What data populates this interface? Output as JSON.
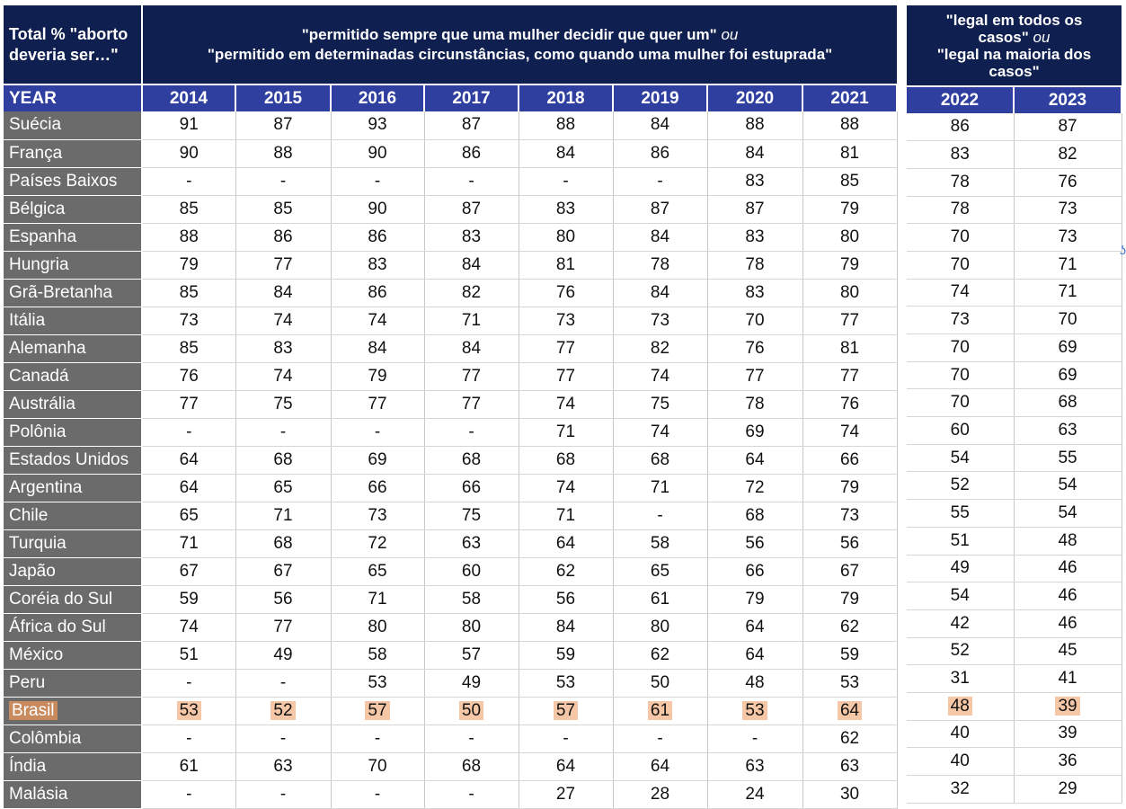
{
  "corner_label_line1": "Total % \"aborto",
  "corner_label_line2": "deveria ser…\"",
  "super_left_part1": "\"permitido sempre que uma mulher decidir que quer um\"",
  "super_left_or": "ou",
  "super_left_line2": "\"permitido em determinadas circunstâncias, como quando uma mulher foi estuprada\"",
  "super_right_line1": "\"legal em todos os",
  "super_right_part2": "casos\"",
  "super_right_or": "ou",
  "super_right_line3": "\"legal na maioria dos",
  "super_right_line4": "casos\"",
  "year_label": "YEAR",
  "highlight_color": "#f6c7a6",
  "chart_data": {
    "type": "table",
    "years_left": [
      "2014",
      "2015",
      "2016",
      "2017",
      "2018",
      "2019",
      "2020",
      "2021"
    ],
    "years_right": [
      "2022",
      "2023"
    ],
    "highlighted_country": "Brasil",
    "rows": [
      {
        "country": "Suécia",
        "left": [
          "91",
          "87",
          "93",
          "87",
          "88",
          "84",
          "88",
          "88"
        ],
        "right": [
          "86",
          "87"
        ]
      },
      {
        "country": "França",
        "left": [
          "90",
          "88",
          "90",
          "86",
          "84",
          "86",
          "84",
          "81"
        ],
        "right": [
          "83",
          "82"
        ]
      },
      {
        "country": "Países Baixos",
        "left": [
          "-",
          "-",
          "-",
          "-",
          "-",
          "-",
          "83",
          "85"
        ],
        "right": [
          "78",
          "76"
        ]
      },
      {
        "country": "Bélgica",
        "left": [
          "85",
          "85",
          "90",
          "87",
          "83",
          "87",
          "87",
          "79"
        ],
        "right": [
          "78",
          "73"
        ]
      },
      {
        "country": "Espanha",
        "left": [
          "88",
          "86",
          "86",
          "83",
          "80",
          "84",
          "83",
          "80"
        ],
        "right": [
          "70",
          "73"
        ]
      },
      {
        "country": "Hungria",
        "left": [
          "79",
          "77",
          "83",
          "84",
          "81",
          "78",
          "78",
          "79"
        ],
        "right": [
          "70",
          "71"
        ]
      },
      {
        "country": "Grã-Bretanha",
        "left": [
          "85",
          "84",
          "86",
          "82",
          "76",
          "84",
          "83",
          "80"
        ],
        "right": [
          "74",
          "71"
        ]
      },
      {
        "country": "Itália",
        "left": [
          "73",
          "74",
          "74",
          "71",
          "73",
          "73",
          "70",
          "77"
        ],
        "right": [
          "73",
          "70"
        ]
      },
      {
        "country": "Alemanha",
        "left": [
          "85",
          "83",
          "84",
          "84",
          "77",
          "82",
          "76",
          "81"
        ],
        "right": [
          "70",
          "69"
        ]
      },
      {
        "country": "Canadá",
        "left": [
          "76",
          "74",
          "79",
          "77",
          "77",
          "74",
          "77",
          "77"
        ],
        "right": [
          "70",
          "69"
        ]
      },
      {
        "country": "Austrália",
        "left": [
          "77",
          "75",
          "77",
          "77",
          "74",
          "75",
          "78",
          "76"
        ],
        "right": [
          "70",
          "68"
        ]
      },
      {
        "country": "Polônia",
        "left": [
          "-",
          "-",
          "-",
          "-",
          "71",
          "74",
          "69",
          "74"
        ],
        "right": [
          "60",
          "63"
        ]
      },
      {
        "country": "Estados Unidos",
        "left": [
          "64",
          "68",
          "69",
          "68",
          "68",
          "68",
          "64",
          "66"
        ],
        "right": [
          "54",
          "55"
        ]
      },
      {
        "country": "Argentina",
        "left": [
          "64",
          "65",
          "66",
          "66",
          "74",
          "71",
          "72",
          "79"
        ],
        "right": [
          "52",
          "54"
        ]
      },
      {
        "country": "Chile",
        "left": [
          "65",
          "71",
          "73",
          "75",
          "71",
          "-",
          "68",
          "73"
        ],
        "right": [
          "55",
          "54"
        ]
      },
      {
        "country": "Turquia",
        "left": [
          "71",
          "68",
          "72",
          "63",
          "64",
          "58",
          "56",
          "56"
        ],
        "right": [
          "51",
          "48"
        ]
      },
      {
        "country": "Japão",
        "left": [
          "67",
          "67",
          "65",
          "60",
          "62",
          "65",
          "66",
          "67"
        ],
        "right": [
          "49",
          "46"
        ]
      },
      {
        "country": "Coréia do Sul",
        "left": [
          "59",
          "56",
          "71",
          "58",
          "56",
          "61",
          "79",
          "79"
        ],
        "right": [
          "54",
          "46"
        ]
      },
      {
        "country": "África do Sul",
        "left": [
          "74",
          "77",
          "80",
          "80",
          "84",
          "80",
          "64",
          "62"
        ],
        "right": [
          "42",
          "46"
        ]
      },
      {
        "country": "México",
        "left": [
          "51",
          "49",
          "58",
          "57",
          "59",
          "62",
          "64",
          "59"
        ],
        "right": [
          "52",
          "45"
        ]
      },
      {
        "country": "Peru",
        "left": [
          "-",
          "-",
          "53",
          "49",
          "53",
          "50",
          "48",
          "53"
        ],
        "right": [
          "31",
          "41"
        ]
      },
      {
        "country": "Brasil",
        "left": [
          "53",
          "52",
          "57",
          "50",
          "57",
          "61",
          "53",
          "64"
        ],
        "right": [
          "48",
          "39"
        ]
      },
      {
        "country": "Colômbia",
        "left": [
          "-",
          "-",
          "-",
          "-",
          "-",
          "-",
          "-",
          "62"
        ],
        "right": [
          "40",
          "39"
        ]
      },
      {
        "country": "Índia",
        "left": [
          "61",
          "63",
          "70",
          "68",
          "64",
          "64",
          "63",
          "63"
        ],
        "right": [
          "40",
          "36"
        ]
      },
      {
        "country": "Malásia",
        "left": [
          "-",
          "-",
          "-",
          "-",
          "27",
          "28",
          "24",
          "30"
        ],
        "right": [
          "32",
          "29"
        ]
      }
    ]
  }
}
